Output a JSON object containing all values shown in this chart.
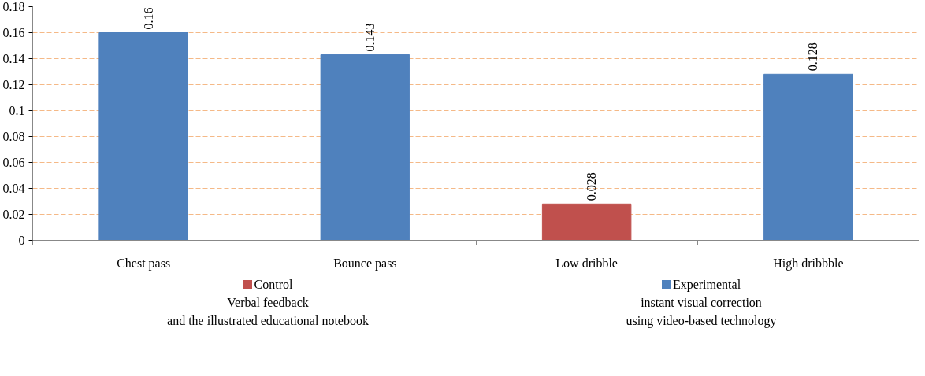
{
  "chart_data": {
    "type": "bar",
    "stacked": true,
    "categories": [
      "Chest pass",
      "Bounce pass",
      "Low dribble",
      "High dribbble"
    ],
    "series": [
      {
        "name": "Control\nVerbal feedback\nand the illustrated educational notebook",
        "color": "#c0504d",
        "values": [
          null,
          null,
          0.028,
          null
        ]
      },
      {
        "name": "Experimental\ninstant visual correction\nusing video-based technology",
        "color": "#4f81bd",
        "values": [
          0.16,
          0.143,
          null,
          0.128
        ]
      }
    ],
    "ylim": [
      0,
      0.18
    ],
    "yticks": [
      0,
      0.02,
      0.04,
      0.06,
      0.08,
      0.1,
      0.12,
      0.14,
      0.16,
      0.18
    ],
    "grid": "y",
    "legend": "bottom",
    "data_labels": true
  }
}
